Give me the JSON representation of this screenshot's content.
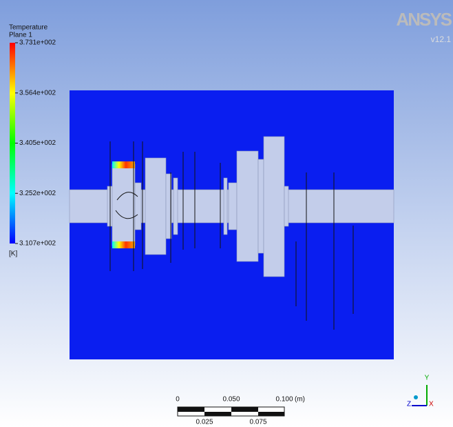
{
  "legend": {
    "title": "Temperature",
    "subtitle": "Plane 1",
    "labels": [
      "3.731e+002",
      "3.564e+002",
      "3.405e+002",
      "3.252e+002",
      "3.107e+002"
    ],
    "unit": "[K]"
  },
  "logo": {
    "brand": "ANSYS",
    "version": "v12.1"
  },
  "scale_bar": {
    "top_labels": [
      "0",
      "0.050",
      "0.100"
    ],
    "unit": "(m)",
    "bottom_labels": [
      "0.025",
      "0.075"
    ]
  },
  "axes": {
    "y": "Y",
    "z": "Z",
    "x": "X"
  }
}
